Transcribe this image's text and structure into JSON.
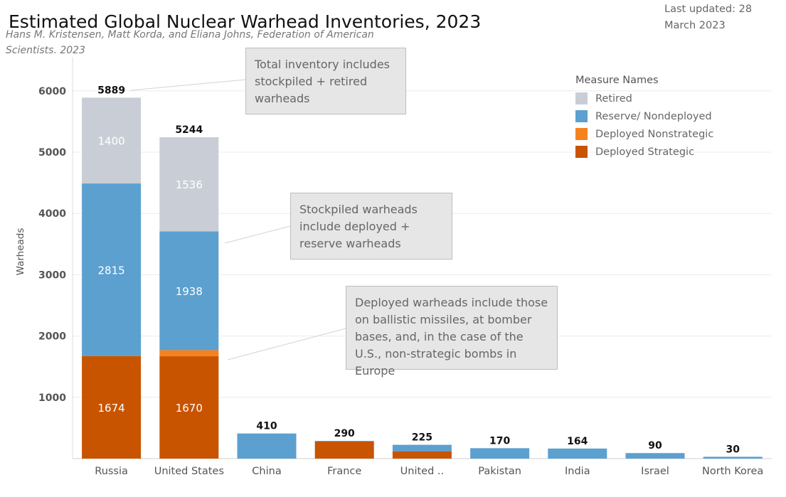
{
  "header": {
    "title": "Estimated Global Nuclear Warhead Inventories, 2023",
    "subtitle": "Hans M. Kristensen, Matt Korda, and Eliana Johns, Federation of American Scientists. 2023",
    "last_updated": "Last updated: 28 March 2023"
  },
  "annotations": {
    "total": "Total inventory includes stockpiled + retired warheads",
    "stockpiled": "Stockpiled warheads include deployed + reserve warheads",
    "deployed": "Deployed warheads include those on ballistic missiles, at bomber bases, and, in the case of the U.S., non-strategic bombs in Europe"
  },
  "legend": {
    "title": "Measure Names",
    "items": [
      {
        "label": "Retired",
        "color": "#c9ced6"
      },
      {
        "label": "Reserve/ Nondeployed",
        "color": "#5ca0cf"
      },
      {
        "label": "Deployed Nonstrategic",
        "color": "#f6821f"
      },
      {
        "label": "Deployed Strategic",
        "color": "#c85400"
      }
    ]
  },
  "chart_data": {
    "type": "bar",
    "stacked": true,
    "categories": [
      "Russia",
      "United States",
      "China",
      "France",
      "United ..",
      "Pakistan",
      "India",
      "Israel",
      "North Korea"
    ],
    "series": [
      {
        "name": "Deployed Strategic",
        "color": "#c85400",
        "values": [
          1674,
          1670,
          0,
          280,
          120,
          0,
          0,
          0,
          0
        ]
      },
      {
        "name": "Deployed Nonstrategic",
        "color": "#f6821f",
        "values": [
          0,
          100,
          0,
          0,
          0,
          0,
          0,
          0,
          0
        ]
      },
      {
        "name": "Reserve/ Nondeployed",
        "color": "#5ca0cf",
        "values": [
          2815,
          1938,
          410,
          10,
          105,
          170,
          164,
          90,
          30
        ]
      },
      {
        "name": "Retired",
        "color": "#c9ced6",
        "values": [
          1400,
          1536,
          0,
          0,
          0,
          0,
          0,
          0,
          0
        ]
      }
    ],
    "segment_labels": {
      "Deployed Strategic": [
        "1674",
        "1670",
        "",
        "",
        "",
        "",
        "",
        "",
        ""
      ],
      "Reserve/ Nondeployed": [
        "2815",
        "1938",
        "",
        "",
        "",
        "",
        "",
        "",
        ""
      ],
      "Retired": [
        "1400",
        "1536",
        "",
        "",
        "",
        "",
        "",
        "",
        ""
      ]
    },
    "totals": [
      5889,
      5244,
      410,
      290,
      225,
      170,
      164,
      90,
      30
    ],
    "ylabel": "Warheads",
    "yticks": [
      1000,
      2000,
      3000,
      4000,
      5000,
      6000
    ],
    "ylim": [
      0,
      6000
    ],
    "grid": true,
    "legend_position": "top-right"
  }
}
